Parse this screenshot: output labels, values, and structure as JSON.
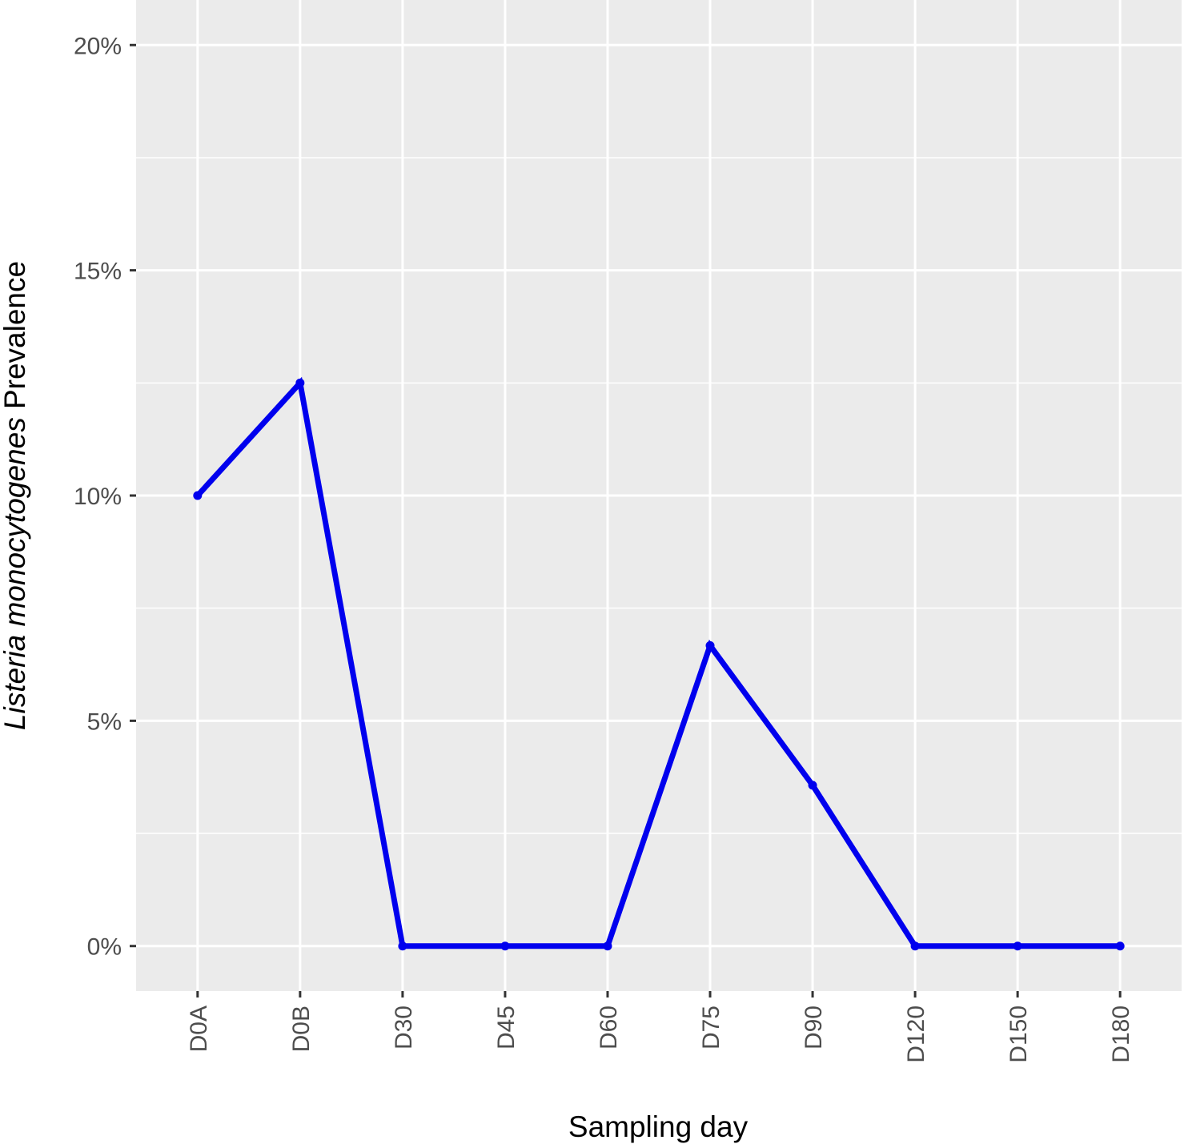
{
  "chart_data": {
    "type": "line",
    "xlabel": "Sampling day",
    "ylabel_italic": "Listeria monocytogenes",
    "ylabel_rest": " Prevalence",
    "categories": [
      "D0A",
      "D0B",
      "D30",
      "D45",
      "D60",
      "D75",
      "D90",
      "D120",
      "D150",
      "D180"
    ],
    "series": [
      {
        "values": [
          10.0,
          12.5,
          0.0,
          0.0,
          0.0,
          6.67,
          3.57,
          0.0,
          0.0,
          0.0
        ]
      }
    ],
    "ylim": [
      -1,
      21
    ],
    "yticks": [
      0,
      5,
      10,
      15,
      20
    ],
    "ytick_labels": [
      "0%",
      "5%",
      "10%",
      "15%",
      "20%"
    ],
    "grid": true,
    "colors": {
      "line": "#0000ee",
      "panel": "#ebebeb",
      "grid": "#ffffff",
      "tick_text": "#4d4d4d"
    }
  }
}
